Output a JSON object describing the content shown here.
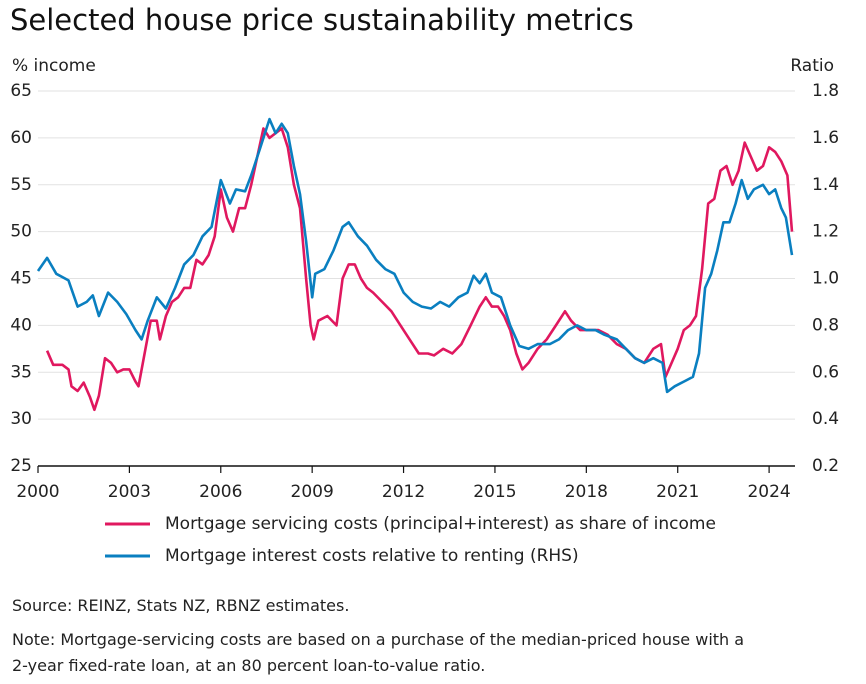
{
  "chart_data": {
    "type": "line",
    "title": "Selected house price sustainability metrics",
    "y_label": "% income",
    "y2_label": "Ratio",
    "xlim": [
      2000,
      2024.85
    ],
    "xticks": [
      2000,
      2003,
      2006,
      2009,
      2012,
      2015,
      2018,
      2021,
      2024
    ],
    "ylim": [
      25,
      65
    ],
    "yticks": [
      25,
      30,
      35,
      40,
      45,
      50,
      55,
      60,
      65
    ],
    "y2lim": [
      0.2,
      1.8
    ],
    "y2ticks": [
      0.2,
      0.4,
      0.6,
      0.8,
      {
        "value": 1,
        "label": "1.0"
      },
      1.2,
      1.4,
      1.6,
      1.8
    ],
    "grid": true,
    "series": [
      {
        "name": "Mortgage servicing costs (principal+interest) as share of income",
        "color": "#e0185f",
        "x": [
          2000.3,
          2000.5,
          2000.8,
          2001.0,
          2001.1,
          2001.3,
          2001.5,
          2001.7,
          2001.85,
          2002.0,
          2002.2,
          2002.4,
          2002.6,
          2002.8,
          2003.0,
          2003.2,
          2003.3,
          2003.5,
          2003.7,
          2003.9,
          2004.0,
          2004.2,
          2004.4,
          2004.6,
          2004.8,
          2005.0,
          2005.2,
          2005.4,
          2005.6,
          2005.8,
          2006.0,
          2006.2,
          2006.4,
          2006.6,
          2006.8,
          2007.0,
          2007.2,
          2007.4,
          2007.6,
          2007.8,
          2008.0,
          2008.2,
          2008.4,
          2008.6,
          2008.8,
          2008.95,
          2009.05,
          2009.2,
          2009.5,
          2009.8,
          2010.0,
          2010.2,
          2010.4,
          2010.6,
          2010.8,
          2011.0,
          2011.3,
          2011.6,
          2011.9,
          2012.2,
          2012.5,
          2012.8,
          2013.0,
          2013.3,
          2013.6,
          2013.9,
          2014.2,
          2014.5,
          2014.7,
          2014.9,
          2015.1,
          2015.3,
          2015.5,
          2015.7,
          2015.9,
          2016.1,
          2016.4,
          2016.7,
          2017.0,
          2017.3,
          2017.5,
          2017.8,
          2018.1,
          2018.4,
          2018.7,
          2019.0,
          2019.3,
          2019.6,
          2019.9,
          2020.2,
          2020.45,
          2020.6,
          2020.8,
          2021.0,
          2021.2,
          2021.4,
          2021.6,
          2021.8,
          2022.0,
          2022.2,
          2022.4,
          2022.6,
          2022.8,
          2023.0,
          2023.2,
          2023.4,
          2023.6,
          2023.8,
          2024.0,
          2024.2,
          2024.4,
          2024.6,
          2024.75
        ],
        "values": [
          37.3,
          35.8,
          35.8,
          35.3,
          33.5,
          33,
          33.9,
          32.4,
          31,
          32.5,
          36.5,
          36,
          35,
          35.3,
          35.3,
          34,
          33.5,
          37,
          40.5,
          40.5,
          38.5,
          41,
          42.5,
          43,
          44,
          44,
          47,
          46.5,
          47.5,
          49.5,
          54.5,
          51.5,
          50,
          52.5,
          52.5,
          55,
          58,
          61,
          60,
          60.5,
          61,
          59,
          55,
          52.5,
          45,
          40,
          38.5,
          40.5,
          41,
          40,
          45,
          46.5,
          46.5,
          45,
          44,
          43.5,
          42.5,
          41.5,
          40,
          38.5,
          37,
          37,
          36.8,
          37.5,
          37,
          38,
          40,
          42,
          43,
          42,
          42,
          41,
          39.5,
          37,
          35.3,
          36,
          37.5,
          38.5,
          40,
          41.5,
          40.5,
          39.5,
          39.5,
          39.5,
          39,
          38,
          37.5,
          36.5,
          36,
          37.5,
          38,
          34.5,
          36,
          37.5,
          39.5,
          40,
          41,
          46,
          53,
          53.5,
          56.5,
          57,
          55,
          56.5,
          59.5,
          58,
          56.5,
          57,
          59,
          58.5,
          57.5,
          56,
          50
        ]
      },
      {
        "name": "Mortgage interest costs relative to renting (RHS)",
        "color": "#0a7fc0",
        "axis": "y2",
        "x": [
          2000.0,
          2000.3,
          2000.6,
          2001.0,
          2001.3,
          2001.6,
          2001.8,
          2002.0,
          2002.3,
          2002.6,
          2002.9,
          2003.2,
          2003.4,
          2003.6,
          2003.9,
          2004.2,
          2004.5,
          2004.8,
          2005.1,
          2005.4,
          2005.7,
          2006.0,
          2006.3,
          2006.5,
          2006.8,
          2007.0,
          2007.3,
          2007.6,
          2007.8,
          2008.0,
          2008.2,
          2008.4,
          2008.6,
          2008.8,
          2009.0,
          2009.1,
          2009.4,
          2009.7,
          2010.0,
          2010.2,
          2010.5,
          2010.8,
          2011.1,
          2011.4,
          2011.7,
          2012.0,
          2012.3,
          2012.6,
          2012.9,
          2013.2,
          2013.5,
          2013.8,
          2014.1,
          2014.3,
          2014.5,
          2014.7,
          2014.9,
          2015.2,
          2015.5,
          2015.8,
          2016.1,
          2016.4,
          2016.8,
          2017.1,
          2017.4,
          2017.7,
          2018.0,
          2018.3,
          2018.6,
          2019.0,
          2019.3,
          2019.6,
          2019.9,
          2020.2,
          2020.5,
          2020.65,
          2020.9,
          2021.2,
          2021.5,
          2021.7,
          2021.9,
          2022.1,
          2022.3,
          2022.5,
          2022.7,
          2022.9,
          2023.1,
          2023.3,
          2023.5,
          2023.8,
          2024.0,
          2024.2,
          2024.4,
          2024.55,
          2024.75
        ],
        "values": [
          1.032,
          1.088,
          1.02,
          0.992,
          0.88,
          0.9,
          0.928,
          0.84,
          0.94,
          0.9,
          0.848,
          0.78,
          0.74,
          0.82,
          0.92,
          0.872,
          0.96,
          1.06,
          1.1,
          1.18,
          1.22,
          1.42,
          1.32,
          1.38,
          1.372,
          1.44,
          1.56,
          1.68,
          1.62,
          1.66,
          1.62,
          1.48,
          1.36,
          1.16,
          0.92,
          1.02,
          1.04,
          1.12,
          1.22,
          1.24,
          1.18,
          1.14,
          1.08,
          1.04,
          1.02,
          0.94,
          0.9,
          0.88,
          0.872,
          0.9,
          0.88,
          0.92,
          0.94,
          1.012,
          0.98,
          1.02,
          0.94,
          0.92,
          0.8,
          0.712,
          0.7,
          0.72,
          0.72,
          0.74,
          0.78,
          0.8,
          0.78,
          0.78,
          0.76,
          0.74,
          0.7,
          0.66,
          0.64,
          0.66,
          0.64,
          0.516,
          0.54,
          0.56,
          0.58,
          0.68,
          0.96,
          1.02,
          1.12,
          1.24,
          1.24,
          1.32,
          1.42,
          1.34,
          1.38,
          1.4,
          1.36,
          1.38,
          1.3,
          1.26,
          1.1
        ]
      }
    ],
    "source": "Source: REINZ, Stats NZ, RBNZ estimates.",
    "note": [
      "Note: Mortgage-servicing costs are based on a purchase of the median-priced house with a",
      "2-year fixed-rate loan, at an 80 percent loan-to-value ratio."
    ]
  }
}
